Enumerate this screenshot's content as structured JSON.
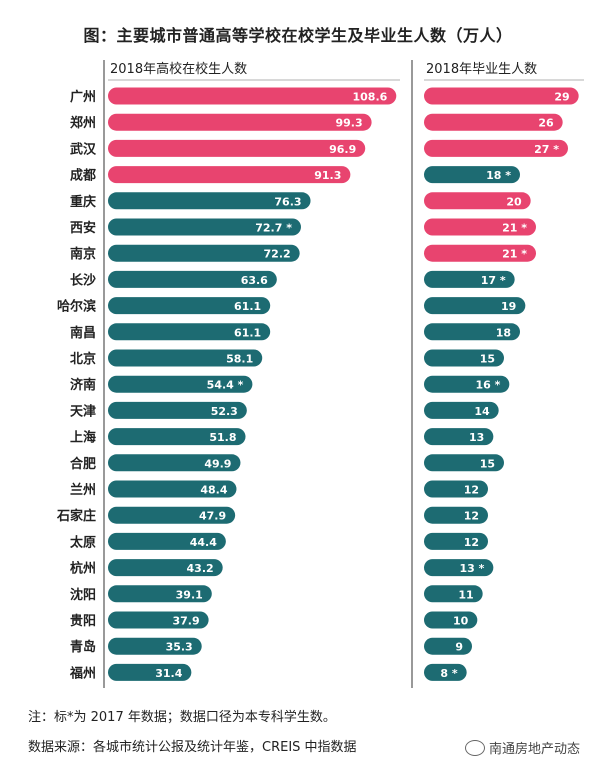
{
  "title": "图：主要城市普通高等学校在校学生及毕业生人数（万人）",
  "chart_data": {
    "type": "bar",
    "orientation": "horizontal",
    "categories": [
      "广州",
      "郑州",
      "武汉",
      "成都",
      "重庆",
      "西安",
      "南京",
      "长沙",
      "哈尔滨",
      "南昌",
      "北京",
      "济南",
      "天津",
      "上海",
      "合肥",
      "兰州",
      "石家庄",
      "太原",
      "杭州",
      "沈阳",
      "贵阳",
      "青岛",
      "福州"
    ],
    "series": [
      {
        "name": "2018年高校在校生人数",
        "values": [
          108.6,
          99.3,
          96.9,
          91.3,
          76.3,
          72.7,
          72.2,
          63.6,
          61.1,
          61.1,
          58.1,
          54.4,
          52.3,
          51.8,
          49.9,
          48.4,
          47.9,
          44.4,
          43.2,
          39.1,
          37.9,
          35.3,
          31.4
        ],
        "labels": [
          "108.6",
          "99.3",
          "96.9",
          "91.3",
          "76.3",
          "72.7 *",
          "72.2",
          "63.6",
          "61.1",
          "61.1",
          "58.1",
          "54.4 *",
          "52.3",
          "51.8",
          "49.9",
          "48.4",
          "47.9",
          "44.4",
          "43.2",
          "39.1",
          "37.9",
          "35.3",
          "31.4"
        ],
        "highlight": [
          true,
          true,
          true,
          true,
          false,
          false,
          false,
          false,
          false,
          false,
          false,
          false,
          false,
          false,
          false,
          false,
          false,
          false,
          false,
          false,
          false,
          false,
          false
        ]
      },
      {
        "name": "2018年毕业生人数",
        "values": [
          29,
          26,
          27,
          18,
          20,
          21,
          21,
          17,
          19,
          18,
          15,
          16,
          14,
          13,
          15,
          12,
          12,
          12,
          13,
          11,
          10,
          9,
          8
        ],
        "labels": [
          "29",
          "26",
          "27 *",
          "18 *",
          "20",
          "21 *",
          "21 *",
          "17 *",
          "19",
          "18",
          "15",
          "16 *",
          "14",
          "13",
          "15",
          "12",
          "12",
          "12",
          "13 *",
          "11",
          "10",
          "9",
          "8 *"
        ],
        "highlight": [
          true,
          true,
          true,
          false,
          true,
          true,
          true,
          false,
          false,
          false,
          false,
          false,
          false,
          false,
          false,
          false,
          false,
          false,
          false,
          false,
          false,
          false,
          false
        ]
      }
    ],
    "colors": {
      "highlight": "#e8446f",
      "normal": "#1d6b72"
    }
  },
  "footnotes": {
    "note": "注：标*为 2017 年数据；数据口径为本专科学生数。",
    "source": "数据来源：各城市统计公报及统计年鉴，CREIS 中指数据"
  },
  "watermark": "南通房地产动态"
}
